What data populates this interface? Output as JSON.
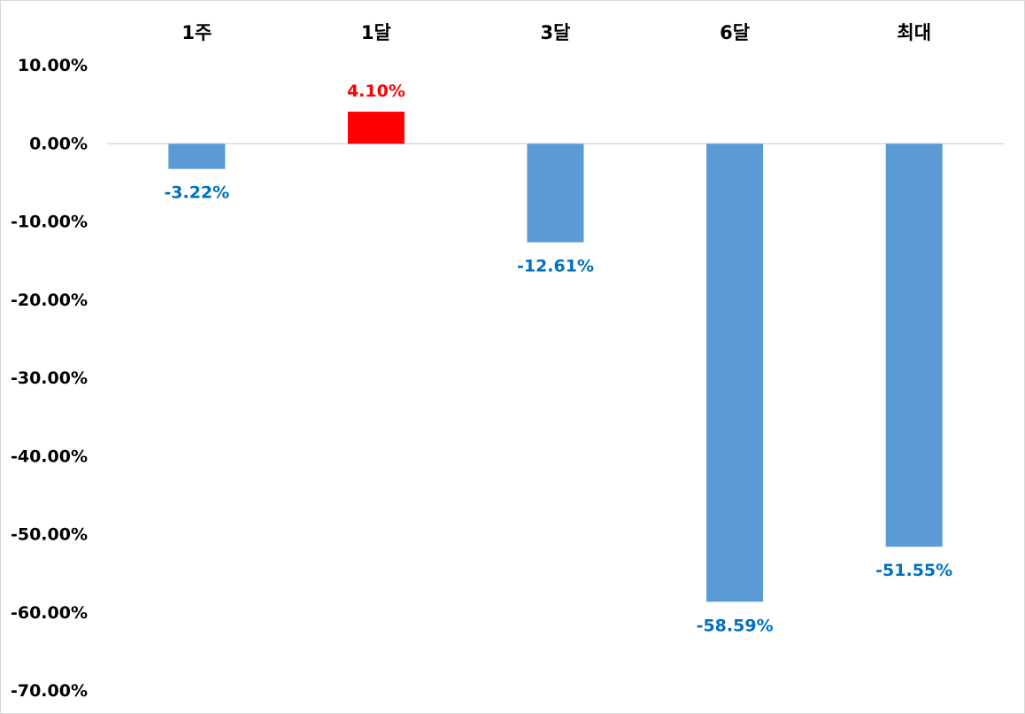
{
  "chart_data": {
    "type": "bar",
    "categories": [
      "1주",
      "1달",
      "3달",
      "6달",
      "최대"
    ],
    "values": [
      -3.22,
      4.1,
      -12.61,
      -58.59,
      -51.55
    ],
    "data_labels": [
      "-3.22%",
      "4.10%",
      "-12.61%",
      "-58.59%",
      "-51.55%"
    ],
    "title": "",
    "xlabel": "",
    "ylabel": "",
    "ylim": [
      -70,
      10
    ],
    "y_ticks": [
      10,
      0,
      -10,
      -20,
      -30,
      -40,
      -50,
      -60,
      -70
    ],
    "y_tick_labels": [
      "10.00%",
      "0.00%",
      "-10.00%",
      "-20.00%",
      "-30.00%",
      "-40.00%",
      "-50.00%",
      "-60.00%",
      "-70.00%"
    ],
    "category_axis_position": "top",
    "grid": false,
    "legend": "none",
    "colors": {
      "positive_bar": "#ff0000",
      "negative_bar": "#5b9bd5",
      "positive_label": "#ff0000",
      "negative_label": "#0070c0",
      "zero_line": "#d9d9d9"
    }
  }
}
